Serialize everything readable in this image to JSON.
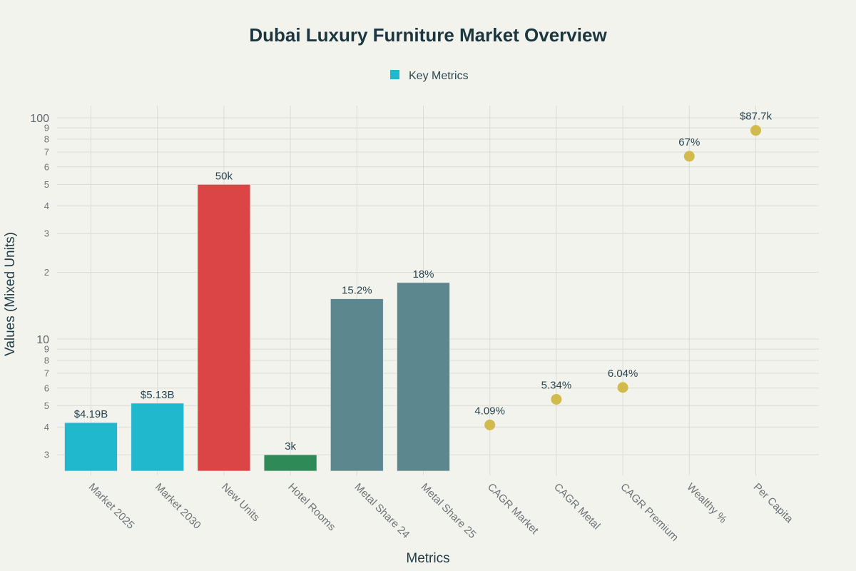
{
  "chart_data": {
    "type": "bar",
    "title": "Dubai Luxury Furniture Market Overview",
    "xlabel": "Metrics",
    "ylabel": "Values (Mixed Units)",
    "yscale": "log",
    "ylim": [
      2.43,
      107
    ],
    "grid": true,
    "legend": {
      "position": "top-center",
      "entries": [
        {
          "name": "Key Metrics",
          "color": "#1fb8cd"
        }
      ]
    },
    "y_ticks": [
      {
        "value": 3,
        "label": "3"
      },
      {
        "value": 4,
        "label": "4"
      },
      {
        "value": 5,
        "label": "5"
      },
      {
        "value": 6,
        "label": "6"
      },
      {
        "value": 7,
        "label": "7"
      },
      {
        "value": 8,
        "label": "8"
      },
      {
        "value": 9,
        "label": "9"
      },
      {
        "value": 10,
        "label": "10",
        "major": true
      },
      {
        "value": 20,
        "label": "2"
      },
      {
        "value": 30,
        "label": "3"
      },
      {
        "value": 40,
        "label": "4"
      },
      {
        "value": 50,
        "label": "5"
      },
      {
        "value": 60,
        "label": "6"
      },
      {
        "value": 70,
        "label": "7"
      },
      {
        "value": 80,
        "label": "8"
      },
      {
        "value": 90,
        "label": "9"
      },
      {
        "value": 100,
        "label": "100",
        "major": true
      }
    ],
    "categories": [
      "Market 2025",
      "Market 2030",
      "New Units",
      "Hotel Rooms",
      "Metal Share 24",
      "Metal Share 25",
      "CAGR Market",
      "CAGR Metal",
      "CAGR Premium",
      "Wealthy %",
      "Per Capita"
    ],
    "values": [
      4.19,
      5.13,
      50,
      3,
      15.2,
      18,
      4.09,
      5.34,
      6.04,
      67,
      87.7
    ],
    "points": [
      {
        "category": "Market 2025",
        "value": 4.19,
        "label": "$4.19B",
        "mark": "bar",
        "color": "#1fb8cd"
      },
      {
        "category": "Market 2030",
        "value": 5.13,
        "label": "$5.13B",
        "mark": "bar",
        "color": "#1fb8cd"
      },
      {
        "category": "New Units",
        "value": 50,
        "label": "50k",
        "mark": "bar",
        "color": "#db4545"
      },
      {
        "category": "Hotel Rooms",
        "value": 3,
        "label": "3k",
        "mark": "bar",
        "color": "#2e8b57"
      },
      {
        "category": "Metal Share 24",
        "value": 15.2,
        "label": "15.2%",
        "mark": "bar",
        "color": "#5d878f"
      },
      {
        "category": "Metal Share 25",
        "value": 18,
        "label": "18%",
        "mark": "bar",
        "color": "#5d878f"
      },
      {
        "category": "CAGR Market",
        "value": 4.09,
        "label": "4.09%",
        "mark": "marker",
        "color": "#d2ba4c"
      },
      {
        "category": "CAGR Metal",
        "value": 5.34,
        "label": "5.34%",
        "mark": "marker",
        "color": "#d2ba4c"
      },
      {
        "category": "CAGR Premium",
        "value": 6.04,
        "label": "6.04%",
        "mark": "marker",
        "color": "#d2ba4c"
      },
      {
        "category": "Wealthy %",
        "value": 67,
        "label": "67%",
        "mark": "marker",
        "color": "#d2ba4c"
      },
      {
        "category": "Per Capita",
        "value": 87.7,
        "label": "$87.7k",
        "mark": "marker",
        "color": "#d2ba4c"
      }
    ]
  },
  "colors": {
    "background": "#f3f3ee",
    "grid": "#dcdcd6",
    "title": "#1c3640",
    "cyan": "#1fb8cd",
    "red": "#db4545",
    "green": "#2e8b57",
    "slate": "#5d878f",
    "gold": "#d2ba4c"
  }
}
